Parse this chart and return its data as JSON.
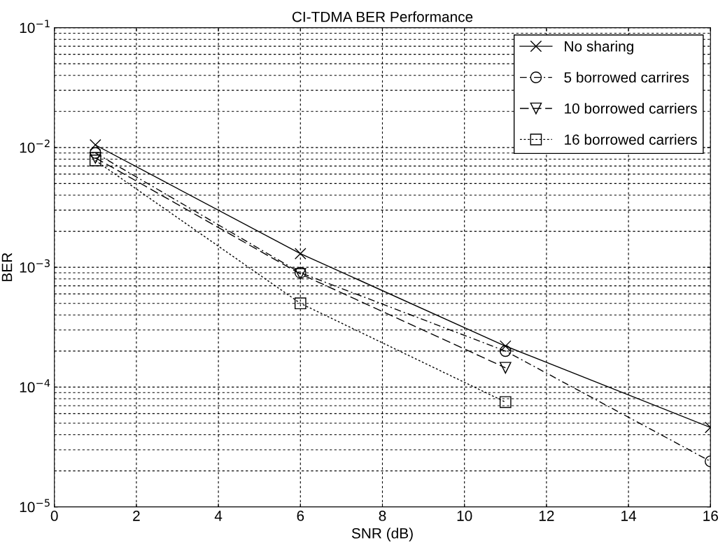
{
  "chart_data": {
    "type": "line",
    "title": "CI-TDMA BER Performance",
    "xlabel": "SNR (dB)",
    "ylabel": "BER",
    "x": [
      1,
      6,
      11,
      16
    ],
    "series": [
      {
        "name": "No sharing",
        "color": "#000000",
        "marker": "cross",
        "line_style": "solid",
        "values": [
          0.0105,
          0.0013,
          0.00022,
          4.6e-05
        ]
      },
      {
        "name": "5 borrowed carrires",
        "color": "#000000",
        "marker": "circle",
        "line_style": "dashdot",
        "values": [
          0.009,
          0.0009,
          0.0002,
          2.4e-05
        ]
      },
      {
        "name": "10 borrowed carriers",
        "color": "#000000",
        "marker": "triangle",
        "line_style": "dashed",
        "values": [
          0.0082,
          0.00088,
          0.000145,
          null
        ]
      },
      {
        "name": "16 borrowed carriers",
        "color": "#000000",
        "marker": "square",
        "line_style": "dotted",
        "values": [
          0.0078,
          0.0005,
          7.5e-05,
          null
        ]
      }
    ],
    "log": "y",
    "xlim": [
      0,
      16
    ],
    "xticks": [
      0,
      2,
      4,
      6,
      8,
      10,
      12,
      14,
      16
    ],
    "ylim": [
      1e-05,
      0.1
    ],
    "yticks": [
      {
        "value": 1e-05,
        "label": "10$^{−5}$"
      },
      {
        "value": 0.0001,
        "label": "10$^{−4}$"
      },
      {
        "value": 0.001,
        "label": "10$^{−3}$"
      },
      {
        "value": 0.01,
        "label": "10$^{−2}$"
      },
      {
        "value": 0.1,
        "label": "10$^{−1}$"
      }
    ],
    "grid": true,
    "legend": "top right"
  }
}
